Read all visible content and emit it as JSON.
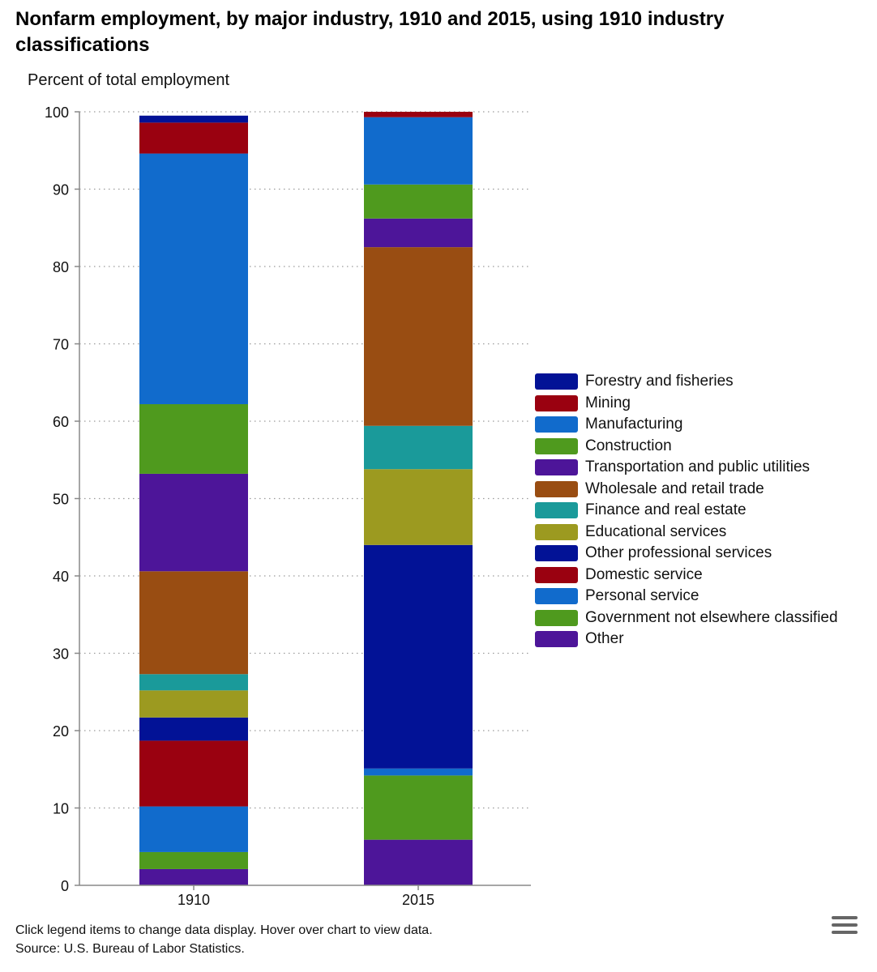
{
  "title": "Nonfarm employment, by major industry, 1910 and 2015, using 1910 industry classifications",
  "footer": {
    "instructions": "Click legend items to change data display. Hover over chart to view data.",
    "source": "Source: U.S. Bureau of Labor Statistics."
  },
  "chart_data": {
    "type": "bar",
    "stacked": true,
    "title": "Nonfarm employment, by major industry, 1910 and 2015, using 1910 industry classifications",
    "xlabel": "",
    "ylabel": "Percent of total employment",
    "ylim": [
      0,
      100
    ],
    "yticks": [
      0,
      10,
      20,
      30,
      40,
      50,
      60,
      70,
      80,
      90,
      100
    ],
    "grid": true,
    "legend": "right",
    "categories": [
      "1910",
      "2015"
    ],
    "series": [
      {
        "name": "Other",
        "color": "#4d1599",
        "values": [
          2.1,
          5.9
        ]
      },
      {
        "name": "Government not elsewhere classified",
        "color": "#4f9a1e",
        "values": [
          2.2,
          8.3
        ]
      },
      {
        "name": "Personal service",
        "color": "#116bcc",
        "values": [
          5.9,
          0.9
        ]
      },
      {
        "name": "Domestic service",
        "color": "#9a0110",
        "values": [
          8.5,
          0.0
        ]
      },
      {
        "name": "Other professional services",
        "color": "#021296",
        "values": [
          3.0,
          28.9
        ]
      },
      {
        "name": "Educational services",
        "color": "#9c9a20",
        "values": [
          3.5,
          9.8
        ]
      },
      {
        "name": "Finance and real estate",
        "color": "#1a9a9a",
        "values": [
          2.1,
          5.6
        ]
      },
      {
        "name": "Wholesale and retail trade",
        "color": "#994d12",
        "values": [
          13.3,
          23.1
        ]
      },
      {
        "name": "Transportation and public utilities",
        "color": "#4d1599",
        "values": [
          12.6,
          3.7
        ]
      },
      {
        "name": "Construction",
        "color": "#4f9a1e",
        "values": [
          9.0,
          4.4
        ]
      },
      {
        "name": "Manufacturing",
        "color": "#116bcc",
        "values": [
          32.4,
          8.7
        ]
      },
      {
        "name": "Mining",
        "color": "#9a0110",
        "values": [
          4.0,
          0.7
        ]
      },
      {
        "name": "Forestry and fisheries",
        "color": "#021296",
        "values": [
          0.9,
          0.0
        ]
      }
    ]
  },
  "legend_order": [
    "Forestry and fisheries",
    "Mining",
    "Manufacturing",
    "Construction",
    "Transportation and public utilities",
    "Wholesale and retail trade",
    "Finance and real estate",
    "Educational services",
    "Other professional services",
    "Domestic service",
    "Personal service",
    "Government not elsewhere classified",
    "Other"
  ],
  "menu_icon": "hamburger-menu-icon"
}
